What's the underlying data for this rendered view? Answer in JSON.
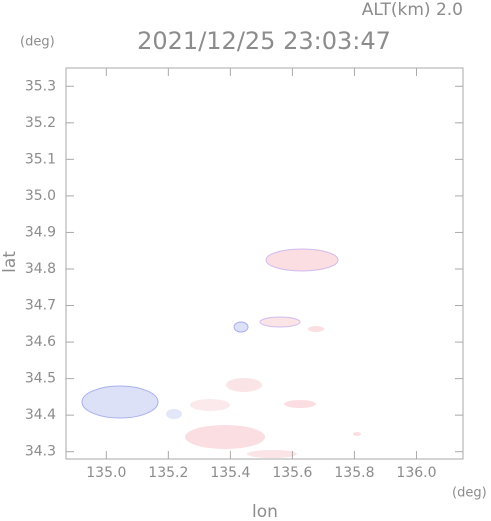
{
  "chart_data": {
    "type": "map",
    "title": "2021/12/25 23:03:47",
    "subtitle": "ALT(km) 2.0",
    "xlabel": "lon",
    "ylabel": "lat",
    "x_unit": "(deg)",
    "y_unit": "(deg)",
    "xlim": [
      134.87,
      136.15
    ],
    "ylim": [
      34.28,
      35.35
    ],
    "xticks": [
      {
        "value": 135,
        "label": "135.0"
      },
      135.2,
      135.4,
      135.6,
      135.8,
      {
        "value": 136,
        "label": "136.0"
      }
    ],
    "yticks": [
      34.3,
      34.4,
      34.5,
      34.6,
      34.7,
      34.8,
      34.9,
      {
        "value": 35,
        "label": "35.0"
      },
      35.1,
      35.2,
      35.3
    ],
    "grid": false
  }
}
